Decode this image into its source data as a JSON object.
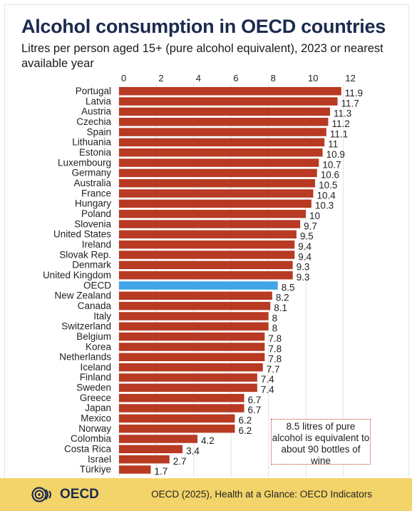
{
  "title": "Alcohol consumption in OECD countries",
  "subtitle": "Litres per person aged 15+ (pure alcohol equivalent), 2023 or nearest available year",
  "note": "8.5 litres of pure alcohol is equivalent to about 90 bottles of wine",
  "footer": {
    "logo_text": "OECD",
    "source": "OECD (2025), Health at a Glance: OECD Indicators"
  },
  "colors": {
    "bar": "#b83a22",
    "highlight": "#3fa5e8",
    "footer": "#f3d46a",
    "title": "#1b2a4e"
  },
  "chart_data": {
    "type": "bar",
    "orientation": "horizontal",
    "title": "Alcohol consumption in OECD countries",
    "subtitle": "Litres per person aged 15+ (pure alcohol equivalent), 2023 or nearest available year",
    "categories": [
      "Portugal",
      "Latvia",
      "Austria",
      "Czechia",
      "Spain",
      "Lithuania",
      "Estonia",
      "Luxembourg",
      "Germany",
      "Australia",
      "France",
      "Hungary",
      "Poland",
      "Slovenia",
      "United States",
      "Ireland",
      "Slovak Rep.",
      "Denmark",
      "United Kingdom",
      "OECD",
      "New Zealand",
      "Canada",
      "Italy",
      "Switzerland",
      "Belgium",
      "Korea",
      "Netherlands",
      "Iceland",
      "Finland",
      "Sweden",
      "Greece",
      "Japan",
      "Mexico",
      "Norway",
      "Colombia",
      "Costa Rica",
      "Israel",
      "Türkiye"
    ],
    "values": [
      11.9,
      11.7,
      11.3,
      11.2,
      11.1,
      11,
      10.9,
      10.7,
      10.6,
      10.5,
      10.4,
      10.3,
      10,
      9.7,
      9.5,
      9.4,
      9.4,
      9.3,
      9.3,
      8.5,
      8.2,
      8.1,
      8,
      8,
      7.8,
      7.8,
      7.8,
      7.7,
      7.4,
      7.4,
      6.7,
      6.7,
      6.2,
      6.2,
      4.2,
      3.4,
      2.7,
      1.7
    ],
    "value_labels": [
      "11.9",
      "11.7",
      "11.3",
      "11.2",
      "11.1",
      "11",
      "10.9",
      "10.7",
      "10.6",
      "10.5",
      "10.4",
      "10.3",
      "10",
      "9.7",
      "9.5",
      "9.4",
      "9.4",
      "9.3",
      "9.3",
      "8.5",
      "8.2",
      "8.1",
      "8",
      "8",
      "7.8",
      "7.8",
      "7.8",
      "7.7",
      "7.4",
      "7.4",
      "6.7",
      "6.7",
      "6.2",
      "6.2",
      "4.2",
      "3.4",
      "2.7",
      "1.7"
    ],
    "highlight": "OECD",
    "xticks": [
      0,
      2,
      4,
      6,
      8,
      10,
      12
    ],
    "xlim": [
      0,
      12
    ],
    "axis_position": "top",
    "grid": true,
    "xlabel": "",
    "ylabel": ""
  }
}
